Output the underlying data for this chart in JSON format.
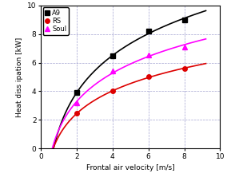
{
  "series": [
    {
      "key": "A9",
      "x": [
        2,
        4,
        6,
        8
      ],
      "y": [
        3.9,
        6.45,
        8.2,
        9.0
      ],
      "color": "#000000",
      "marker": "s",
      "label": "A9",
      "x_start": 0.3,
      "y_start": 0.5
    },
    {
      "key": "RS",
      "x": [
        2,
        4,
        6,
        8
      ],
      "y": [
        2.45,
        4.0,
        5.0,
        5.6
      ],
      "color": "#dd0000",
      "marker": "o",
      "label": "RS",
      "x_start": 0.3,
      "y_start": 0.3
    },
    {
      "key": "Soul",
      "x": [
        2,
        4,
        6,
        8
      ],
      "y": [
        3.2,
        5.4,
        6.55,
        7.1
      ],
      "color": "#ff00ff",
      "marker": "^",
      "label": "Soul",
      "x_start": 0.3,
      "y_start": 0.4
    }
  ],
  "xlim": [
    0,
    10
  ],
  "ylim": [
    0,
    10
  ],
  "xticks": [
    0,
    2,
    4,
    6,
    8,
    10
  ],
  "yticks": [
    0,
    2,
    4,
    6,
    8,
    10
  ],
  "xlabel": "Frontal air velocity [m/s]",
  "ylabel": "Heat diss ipation [kW]",
  "grid_color": "#9999cc",
  "grid_linestyle": "--",
  "background_color": "#ffffff",
  "legend_loc": "upper left",
  "marker_size": 4,
  "line_width": 1.2
}
